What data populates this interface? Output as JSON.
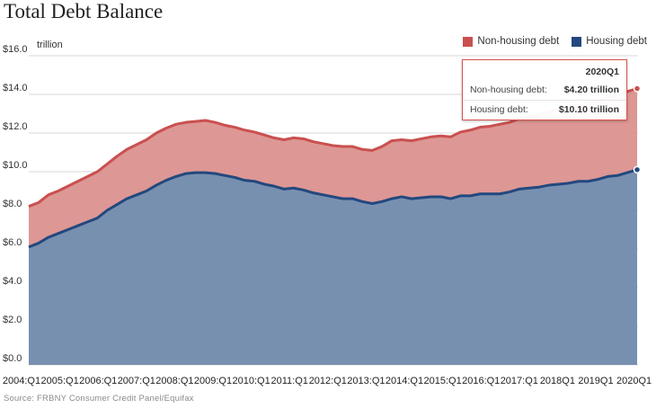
{
  "title": "Total Debt Balance",
  "unit_label": "trillion",
  "source": "Source: FRBNY Consumer Credit Panel/Equifax",
  "tooltip": {
    "period": "2020Q1",
    "rows": [
      {
        "label": "Non-housing debt:",
        "value": "$4.20 trillion"
      },
      {
        "label": "Housing debt:",
        "value": "$10.10 trillion"
      }
    ]
  },
  "chart_data": {
    "type": "area",
    "stacked": true,
    "title": "Total Debt Balance",
    "ylabel": "trillion",
    "ylim": [
      0,
      16
    ],
    "y_ticks": [
      "$0.0",
      "$2.0",
      "$4.0",
      "$6.0",
      "$8.0",
      "$10.0",
      "$12.0",
      "$14.0",
      "$16.0"
    ],
    "x_ticks": [
      "2004:Q1",
      "2005:Q1",
      "2006:Q1",
      "2007:Q1",
      "2008:Q1",
      "2009:Q1",
      "2010:Q1",
      "2011:Q1",
      "2012:Q1",
      "2013:Q1",
      "2014:Q1",
      "2015:Q1",
      "2016:Q1",
      "2017:Q1",
      "2018Q1",
      "2019Q1",
      "2020Q1"
    ],
    "grid": true,
    "legend_position": "top-right",
    "colors": {
      "non_housing": "#c9504f",
      "non_housing_fill": "#dd9794",
      "housing": "#23487e",
      "housing_fill": "#7890b0"
    },
    "series": [
      {
        "name": "Housing debt",
        "values": [
          6.1,
          6.3,
          6.6,
          6.8,
          7.0,
          7.2,
          7.4,
          7.6,
          8.0,
          8.3,
          8.6,
          8.8,
          9.0,
          9.3,
          9.55,
          9.75,
          9.9,
          9.95,
          9.95,
          9.9,
          9.8,
          9.7,
          9.55,
          9.5,
          9.35,
          9.25,
          9.1,
          9.15,
          9.05,
          8.9,
          8.8,
          8.7,
          8.6,
          8.6,
          8.45,
          8.35,
          8.45,
          8.6,
          8.7,
          8.6,
          8.65,
          8.7,
          8.7,
          8.6,
          8.75,
          8.75,
          8.85,
          8.85,
          8.85,
          8.95,
          9.1,
          9.15,
          9.2,
          9.3,
          9.35,
          9.4,
          9.5,
          9.5,
          9.6,
          9.75,
          9.8,
          9.95,
          10.1
        ]
      },
      {
        "name": "Non-housing debt",
        "values": [
          2.1,
          2.1,
          2.2,
          2.2,
          2.25,
          2.3,
          2.35,
          2.4,
          2.4,
          2.5,
          2.55,
          2.6,
          2.65,
          2.7,
          2.7,
          2.7,
          2.65,
          2.65,
          2.7,
          2.65,
          2.6,
          2.6,
          2.6,
          2.55,
          2.55,
          2.5,
          2.55,
          2.6,
          2.65,
          2.65,
          2.65,
          2.65,
          2.7,
          2.7,
          2.7,
          2.75,
          2.85,
          3.0,
          2.95,
          3.0,
          3.05,
          3.1,
          3.15,
          3.2,
          3.3,
          3.4,
          3.45,
          3.5,
          3.6,
          3.6,
          3.65,
          3.7,
          3.75,
          3.8,
          3.85,
          3.9,
          3.95,
          4.0,
          4.05,
          4.1,
          4.15,
          4.2,
          4.2
        ]
      }
    ]
  }
}
